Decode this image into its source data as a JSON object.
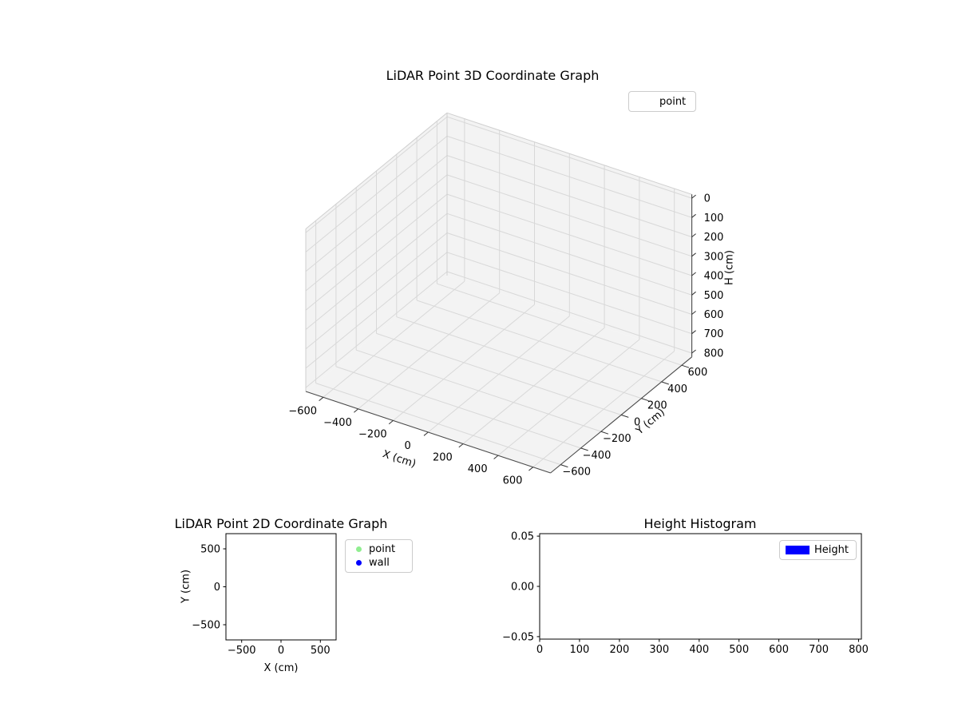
{
  "figure": {
    "background": "#ffffff"
  },
  "chart_data": [
    {
      "id": "lidar-3d",
      "type": "scatter3d",
      "title": "LiDAR Point 3D Coordinate Graph",
      "xlabel": "X (cm)",
      "ylabel": "Y (cm)",
      "zlabel": "H (cm)",
      "xlim": [
        -700,
        700
      ],
      "ylim": [
        -700,
        700
      ],
      "zlim": [
        0,
        800
      ],
      "zaxis_inverted": true,
      "xticks": [
        -600,
        -400,
        -200,
        0,
        200,
        400,
        600
      ],
      "xtick_labels": [
        "−600",
        "−400",
        "−200",
        "0",
        "200",
        "400",
        "600"
      ],
      "yticks": [
        -600,
        -400,
        -200,
        0,
        200,
        400,
        600
      ],
      "ytick_labels": [
        "−600",
        "−400",
        "−200",
        "0",
        "200",
        "400",
        "600"
      ],
      "zticks": [
        0,
        100,
        200,
        300,
        400,
        500,
        600,
        700,
        800
      ],
      "ztick_labels": [
        "0",
        "100",
        "200",
        "300",
        "400",
        "500",
        "600",
        "700",
        "800"
      ],
      "grid": true,
      "legend": {
        "position": "upper right",
        "entries": [
          {
            "label": "point"
          }
        ]
      },
      "series": [
        {
          "name": "point",
          "points": []
        }
      ],
      "colors": {
        "pane": "#f3f3f3",
        "grid": "#d8d8d8",
        "pane_edge": "#cfcfcf",
        "axis_line": "#4a4a4a",
        "tick": "#333333"
      }
    },
    {
      "id": "lidar-2d",
      "type": "scatter",
      "title": "LiDAR Point 2D Coordinate Graph",
      "xlabel": "X (cm)",
      "ylabel": "Y (cm)",
      "xlim": [
        -700,
        700
      ],
      "ylim": [
        -700,
        700
      ],
      "xticks": [
        -500,
        0,
        500
      ],
      "xtick_labels": [
        "−500",
        "0",
        "500"
      ],
      "yticks": [
        -500,
        0,
        500
      ],
      "ytick_labels": [
        "−500",
        "0",
        "500"
      ],
      "grid": false,
      "legend": {
        "position": "outside right",
        "entries": [
          {
            "label": "point",
            "color": "#90ee90",
            "marker": "circle"
          },
          {
            "label": "wall",
            "color": "#0000ff",
            "marker": "circle"
          }
        ]
      },
      "series": [
        {
          "name": "point",
          "points": []
        },
        {
          "name": "wall",
          "points": []
        }
      ]
    },
    {
      "id": "height-histogram",
      "type": "bar",
      "title": "Height Histogram",
      "xlabel": "",
      "ylabel": "",
      "xlim": [
        0,
        807
      ],
      "ylim": [
        -0.0525,
        0.0525
      ],
      "xticks": [
        0,
        100,
        200,
        300,
        400,
        500,
        600,
        700,
        800
      ],
      "xtick_labels": [
        "0",
        "100",
        "200",
        "300",
        "400",
        "500",
        "600",
        "700",
        "800"
      ],
      "yticks": [
        -0.05,
        0,
        0.05
      ],
      "ytick_labels": [
        "−0.05",
        "0.00",
        "0.05"
      ],
      "grid": false,
      "legend": {
        "position": "upper right",
        "entries": [
          {
            "label": "Height",
            "color": "#0000ff",
            "marker": "rect"
          }
        ]
      },
      "values": []
    }
  ]
}
